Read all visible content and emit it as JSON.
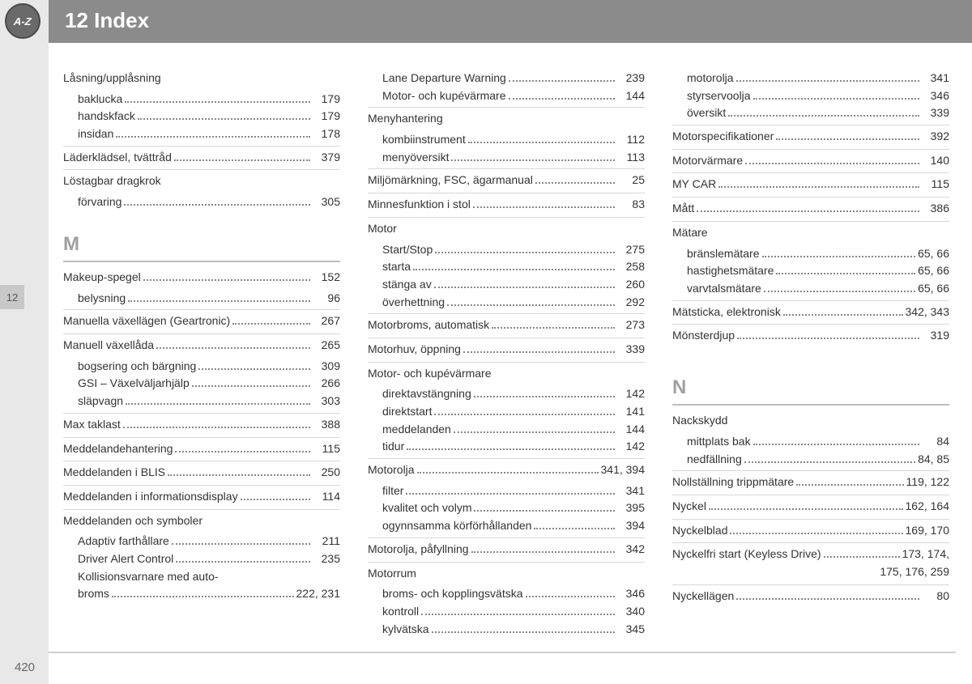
{
  "badge_text": "A-Z",
  "chapter_title": "12 Index",
  "thumb_tab": "12",
  "page_number": "420",
  "sections": {
    "pre": [
      {
        "heading": "Låsning/upplåsning",
        "subs": [
          {
            "label": "baklucka",
            "page": "179"
          },
          {
            "label": "handskfack",
            "page": "179"
          },
          {
            "label": "insidan",
            "page": "178"
          }
        ]
      },
      {
        "heading": "Läderklädsel, tvättråd",
        "page": "379"
      },
      {
        "heading": "Löstagbar dragkrok",
        "subs": [
          {
            "label": "förvaring",
            "page": "305"
          }
        ]
      }
    ],
    "M": [
      {
        "heading": "Makeup-spegel",
        "page": "152",
        "subs": [
          {
            "label": "belysning",
            "page": "96"
          }
        ]
      },
      {
        "heading": "Manuella växellägen (Geartronic)",
        "page": "267"
      },
      {
        "heading": "Manuell växellåda",
        "page": "265",
        "subs": [
          {
            "label": "bogsering och bärgning",
            "page": "309"
          },
          {
            "label": "GSI – Växelväljarhjälp",
            "page": "266"
          },
          {
            "label": "släpvagn",
            "page": "303"
          }
        ]
      },
      {
        "heading": "Max taklast",
        "page": "388"
      },
      {
        "heading": "Meddelandehantering",
        "page": "115"
      },
      {
        "heading": "Meddelanden i BLIS",
        "page": "250"
      },
      {
        "heading": "Meddelanden i informationsdisplay",
        "page": "114"
      },
      {
        "heading": "Meddelanden och symboler",
        "subs": [
          {
            "label": "Adaptiv farthållare",
            "page": "211"
          },
          {
            "label": "Driver Alert Control",
            "page": "235"
          },
          {
            "label": "Kollisionsvarnare med auto-\nbroms",
            "page": "222, 231"
          },
          {
            "label": "Lane Departure Warning",
            "page": "239",
            "colbreak": true
          },
          {
            "label": "Motor- och kupévärmare",
            "page": "144"
          }
        ]
      },
      {
        "heading": "Menyhantering",
        "subs": [
          {
            "label": "kombiinstrument",
            "page": "112"
          },
          {
            "label": "menyöversikt",
            "page": "113"
          }
        ]
      },
      {
        "heading": "Miljömärkning, FSC, ägarmanual",
        "page": "25"
      },
      {
        "heading": "Minnesfunktion i stol",
        "page": "83"
      },
      {
        "heading": "Motor",
        "subs": [
          {
            "label": "Start/Stop",
            "page": "275"
          },
          {
            "label": "starta",
            "page": "258"
          },
          {
            "label": "stänga av",
            "page": "260"
          },
          {
            "label": "överhettning",
            "page": "292"
          }
        ]
      },
      {
        "heading": "Motorbroms, automatisk",
        "page": "273"
      },
      {
        "heading": "Motorhuv, öppning",
        "page": "339"
      },
      {
        "heading": "Motor- och kupévärmare",
        "subs": [
          {
            "label": "direktavstängning",
            "page": "142"
          },
          {
            "label": "direktstart",
            "page": "141"
          },
          {
            "label": "meddelanden",
            "page": "144"
          },
          {
            "label": "tidur",
            "page": "142"
          }
        ]
      },
      {
        "heading": "Motorolja",
        "page": "341, 394",
        "subs": [
          {
            "label": "filter",
            "page": "341"
          },
          {
            "label": "kvalitet och volym",
            "page": "395"
          },
          {
            "label": "ogynnsamma körförhållanden",
            "page": "394"
          }
        ]
      },
      {
        "heading": "Motorolja, påfyllning",
        "page": "342"
      },
      {
        "heading": "Motorrum",
        "subs": [
          {
            "label": "broms- och kopplingsvätska",
            "page": "346"
          },
          {
            "label": "kontroll",
            "page": "340"
          },
          {
            "label": "kylvätska",
            "page": "345"
          },
          {
            "label": "motorolja",
            "page": "341",
            "colbreak": true
          },
          {
            "label": "styrservoolja",
            "page": "346"
          },
          {
            "label": "översikt",
            "page": "339"
          }
        ]
      },
      {
        "heading": "Motorspecifikationer",
        "page": "392"
      },
      {
        "heading": "Motorvärmare",
        "page": "140"
      },
      {
        "heading": "MY CAR",
        "page": "115"
      },
      {
        "heading": "Mått",
        "page": "386"
      },
      {
        "heading": "Mätare",
        "subs": [
          {
            "label": "bränslemätare",
            "page": "65, 66"
          },
          {
            "label": "hastighetsmätare",
            "page": "65, 66"
          },
          {
            "label": "varvtalsmätare",
            "page": "65, 66"
          }
        ]
      },
      {
        "heading": "Mätsticka, elektronisk",
        "page": "342, 343"
      },
      {
        "heading": "Mönsterdjup",
        "page": "319"
      }
    ],
    "N": [
      {
        "heading": "Nackskydd",
        "subs": [
          {
            "label": "mittplats bak",
            "page": "84"
          },
          {
            "label": "nedfällning",
            "page": "84, 85"
          }
        ]
      },
      {
        "heading": "Nollställning trippmätare",
        "page": "119, 122"
      },
      {
        "heading": "Nyckel",
        "page": "162, 164"
      },
      {
        "heading": "Nyckelblad",
        "page": "169, 170"
      },
      {
        "heading": "Nyckelfri start (Keyless Drive)",
        "page": "173, 174,",
        "extra": "175, 176, 259"
      },
      {
        "heading": "Nyckellägen",
        "page": "80"
      }
    ]
  }
}
